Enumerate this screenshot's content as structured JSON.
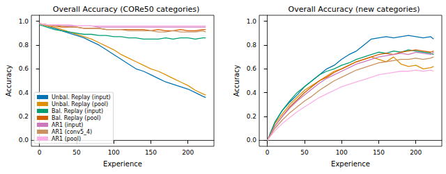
{
  "chart_data": [
    {
      "type": "line",
      "title": "Overall Accuracy (CORe50 categories)",
      "x_label": "Experience",
      "y_label": "Accuracy",
      "xlim": [
        -11,
        235
      ],
      "xticks": [
        0,
        50,
        100,
        150,
        200
      ],
      "ylim": [
        -0.05,
        1.05
      ],
      "yticks": [
        {
          "value": 0,
          "label": "0.0"
        },
        {
          "value": 0.2,
          "label": "0.2"
        },
        {
          "value": 0.4,
          "label": "0.4"
        },
        {
          "value": 0.6,
          "label": "0.6"
        },
        {
          "value": 0.8,
          "label": "0.8"
        },
        {
          "value": 1,
          "label": "1.0"
        }
      ],
      "grid": false,
      "legend": "lower left",
      "x": [
        0,
        10,
        20,
        30,
        40,
        50,
        60,
        70,
        80,
        90,
        100,
        110,
        120,
        130,
        140,
        150,
        160,
        170,
        180,
        190,
        200,
        210,
        220,
        224
      ],
      "series": [
        {
          "name": "Unbal. Replay (input)",
          "color": "#0173b2",
          "values": [
            0.98,
            0.96,
            0.94,
            0.92,
            0.9,
            0.88,
            0.86,
            0.83,
            0.8,
            0.76,
            0.72,
            0.68,
            0.64,
            0.6,
            0.58,
            0.55,
            0.52,
            0.49,
            0.47,
            0.45,
            0.43,
            0.4,
            0.37,
            0.36
          ]
        },
        {
          "name": "Unbal. Replay (pool)",
          "color": "#de8f05",
          "values": [
            0.98,
            0.96,
            0.95,
            0.93,
            0.91,
            0.89,
            0.87,
            0.85,
            0.82,
            0.79,
            0.76,
            0.72,
            0.69,
            0.66,
            0.63,
            0.6,
            0.58,
            0.55,
            0.52,
            0.49,
            0.46,
            0.42,
            0.39,
            0.38
          ]
        },
        {
          "name": "Bal. Replay (input)",
          "color": "#029e73",
          "values": [
            0.97,
            0.95,
            0.93,
            0.92,
            0.91,
            0.9,
            0.89,
            0.89,
            0.88,
            0.88,
            0.87,
            0.87,
            0.86,
            0.86,
            0.85,
            0.85,
            0.85,
            0.86,
            0.85,
            0.86,
            0.86,
            0.85,
            0.86,
            0.86
          ]
        },
        {
          "name": "Bal. Replay (pool)",
          "color": "#d55e00",
          "values": [
            0.98,
            0.97,
            0.96,
            0.95,
            0.95,
            0.95,
            0.94,
            0.94,
            0.94,
            0.93,
            0.93,
            0.93,
            0.93,
            0.93,
            0.93,
            0.92,
            0.93,
            0.92,
            0.92,
            0.93,
            0.92,
            0.92,
            0.93,
            0.93
          ]
        },
        {
          "name": "AR1 (input)",
          "color": "#cc78bc",
          "values": [
            0.98,
            0.97,
            0.97,
            0.96,
            0.96,
            0.96,
            0.96,
            0.96,
            0.95,
            0.95,
            0.95,
            0.95,
            0.95,
            0.95,
            0.95,
            0.95,
            0.95,
            0.95,
            0.95,
            0.95,
            0.95,
            0.95,
            0.95,
            0.95
          ]
        },
        {
          "name": "AR1 (conv5_4)",
          "color": "#ca9161",
          "values": [
            0.98,
            0.97,
            0.96,
            0.96,
            0.95,
            0.95,
            0.94,
            0.94,
            0.94,
            0.93,
            0.93,
            0.93,
            0.92,
            0.92,
            0.92,
            0.92,
            0.91,
            0.91,
            0.92,
            0.91,
            0.91,
            0.91,
            0.92,
            0.91
          ]
        },
        {
          "name": "AR1 (pool)",
          "color": "#fbafe4",
          "values": [
            0.98,
            0.97,
            0.97,
            0.97,
            0.97,
            0.96,
            0.96,
            0.96,
            0.96,
            0.96,
            0.96,
            0.96,
            0.96,
            0.96,
            0.96,
            0.96,
            0.96,
            0.96,
            0.96,
            0.96,
            0.96,
            0.96,
            0.96,
            0.96
          ]
        }
      ]
    },
    {
      "type": "line",
      "title": "Overall Accuracy (new categories)",
      "x_label": "Experience",
      "y_label": "Accuracy",
      "xlim": [
        -11,
        235
      ],
      "xticks": [
        0,
        50,
        100,
        150,
        200
      ],
      "ylim": [
        -0.05,
        1.05
      ],
      "yticks": [
        {
          "value": 0,
          "label": "0.0"
        },
        {
          "value": 0.2,
          "label": "0.2"
        },
        {
          "value": 0.4,
          "label": "0.4"
        },
        {
          "value": 0.6,
          "label": "0.6"
        },
        {
          "value": 0.8,
          "label": "0.8"
        },
        {
          "value": 1,
          "label": "1.0"
        }
      ],
      "grid": false,
      "x": [
        0,
        10,
        20,
        30,
        40,
        50,
        60,
        70,
        80,
        90,
        100,
        110,
        120,
        130,
        140,
        150,
        160,
        170,
        180,
        190,
        200,
        210,
        220,
        224
      ],
      "series": [
        {
          "name": "Unbal. Replay (input)",
          "color": "#0173b2",
          "values": [
            0.0,
            0.15,
            0.25,
            0.32,
            0.38,
            0.45,
            0.5,
            0.55,
            0.6,
            0.63,
            0.68,
            0.72,
            0.75,
            0.8,
            0.85,
            0.86,
            0.87,
            0.86,
            0.87,
            0.88,
            0.87,
            0.86,
            0.87,
            0.85
          ]
        },
        {
          "name": "Unbal. Replay (pool)",
          "color": "#de8f05",
          "values": [
            0.0,
            0.14,
            0.22,
            0.3,
            0.36,
            0.42,
            0.46,
            0.5,
            0.54,
            0.58,
            0.6,
            0.63,
            0.66,
            0.68,
            0.7,
            0.68,
            0.66,
            0.7,
            0.64,
            0.62,
            0.63,
            0.6,
            0.61,
            0.62
          ]
        },
        {
          "name": "Bal. Replay (input)",
          "color": "#029e73",
          "values": [
            0.0,
            0.15,
            0.25,
            0.33,
            0.4,
            0.45,
            0.5,
            0.55,
            0.58,
            0.6,
            0.63,
            0.65,
            0.68,
            0.7,
            0.72,
            0.74,
            0.73,
            0.75,
            0.74,
            0.76,
            0.75,
            0.74,
            0.73,
            0.72
          ]
        },
        {
          "name": "Bal. Replay (pool)",
          "color": "#d55e00",
          "values": [
            0.0,
            0.12,
            0.2,
            0.28,
            0.34,
            0.4,
            0.45,
            0.5,
            0.53,
            0.57,
            0.6,
            0.63,
            0.66,
            0.68,
            0.7,
            0.72,
            0.73,
            0.72,
            0.74,
            0.75,
            0.76,
            0.75,
            0.74,
            0.75
          ]
        },
        {
          "name": "AR1 (input)",
          "color": "#cc78bc",
          "values": [
            0.0,
            0.12,
            0.2,
            0.27,
            0.33,
            0.38,
            0.43,
            0.48,
            0.52,
            0.55,
            0.58,
            0.61,
            0.64,
            0.66,
            0.68,
            0.7,
            0.71,
            0.72,
            0.73,
            0.72,
            0.74,
            0.73,
            0.72,
            0.74
          ]
        },
        {
          "name": "AR1 (conv5_4)",
          "color": "#ca9161",
          "values": [
            0.0,
            0.1,
            0.17,
            0.23,
            0.28,
            0.33,
            0.37,
            0.42,
            0.46,
            0.5,
            0.53,
            0.56,
            0.59,
            0.61,
            0.63,
            0.65,
            0.66,
            0.67,
            0.68,
            0.68,
            0.69,
            0.68,
            0.69,
            0.7
          ]
        },
        {
          "name": "AR1 (pool)",
          "color": "#fbafe4",
          "values": [
            0.0,
            0.08,
            0.14,
            0.19,
            0.24,
            0.28,
            0.32,
            0.36,
            0.39,
            0.42,
            0.45,
            0.47,
            0.49,
            0.51,
            0.53,
            0.55,
            0.56,
            0.57,
            0.58,
            0.58,
            0.59,
            0.58,
            0.59,
            0.58
          ]
        }
      ]
    }
  ]
}
